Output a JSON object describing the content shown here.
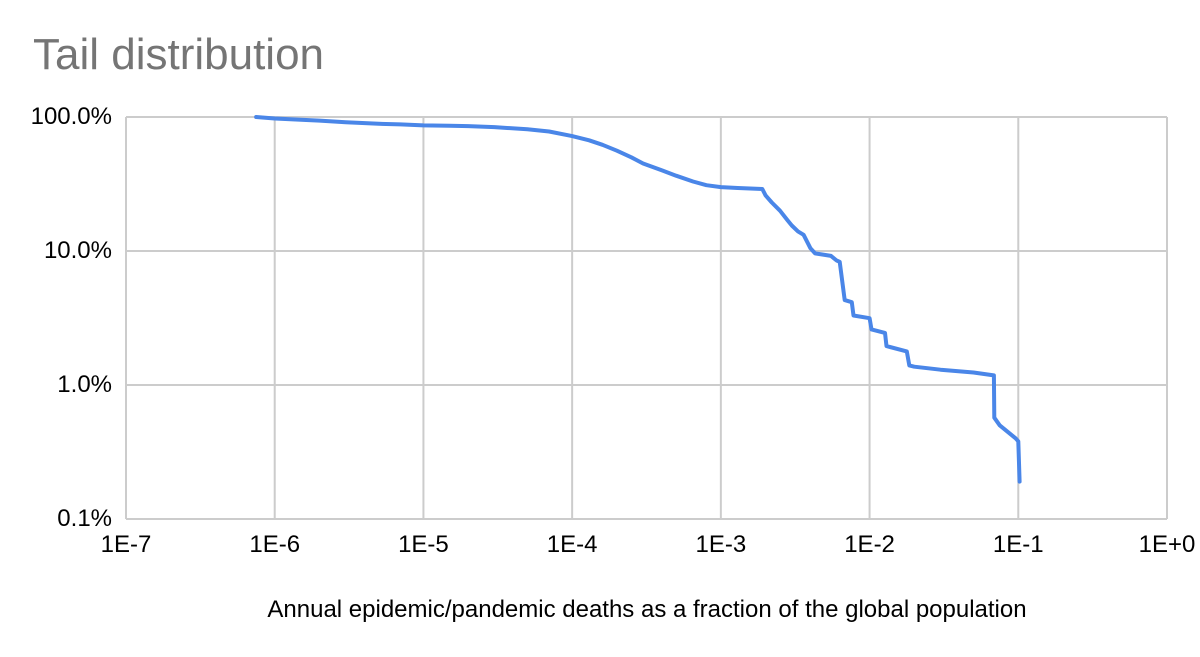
{
  "title": "Tail distribution",
  "colors": {
    "line": "#4a86e8",
    "grid": "#cccccc",
    "title_text": "#757575",
    "axis_text": "#000000",
    "background": "#ffffff"
  },
  "x_axis": {
    "label": "Annual epidemic/pandemic deaths as a fraction of the global population",
    "tick_labels": [
      "1E-7",
      "1E-6",
      "1E-5",
      "1E-4",
      "1E-3",
      "1E-2",
      "1E-1",
      "1E+0"
    ]
  },
  "y_axis": {
    "tick_labels": [
      "100.0%",
      "10.0%",
      "1.0%",
      "0.1%"
    ]
  },
  "chart_data": {
    "type": "line",
    "title": "Tail distribution",
    "xlabel": "Annual epidemic/pandemic deaths as a fraction of the global population",
    "ylabel": "",
    "x_scale": "log",
    "y_scale": "log",
    "x_min_exp": -7,
    "x_max_exp": 0,
    "y_min_log": -1,
    "y_max_log": 2,
    "x_tick_exponents": [
      -7,
      -6,
      -5,
      -4,
      -3,
      -2,
      -1,
      0
    ],
    "y_tick_logs": [
      2,
      1,
      0,
      -1
    ],
    "grid": true,
    "legend": "none",
    "series": [
      {
        "name": "Tail distribution",
        "points_format": "[fraction_of_global_population, ccdf_percent]",
        "points": [
          [
            7.5e-07,
            100
          ],
          [
            1e-06,
            97.5
          ],
          [
            1.5e-06,
            95.5
          ],
          [
            2e-06,
            94
          ],
          [
            3e-06,
            91.5
          ],
          [
            5e-06,
            89
          ],
          [
            7e-06,
            88
          ],
          [
            1e-05,
            86.5
          ],
          [
            1.5e-05,
            86
          ],
          [
            2e-05,
            85.5
          ],
          [
            3e-05,
            84
          ],
          [
            5e-05,
            81
          ],
          [
            7e-05,
            78
          ],
          [
            0.0001,
            72
          ],
          [
            0.00013,
            67
          ],
          [
            0.00016,
            62
          ],
          [
            0.0002,
            56
          ],
          [
            0.00025,
            50
          ],
          [
            0.0003,
            45
          ],
          [
            0.0004,
            40
          ],
          [
            0.0005,
            36.5
          ],
          [
            0.00065,
            33
          ],
          [
            0.0008,
            31
          ],
          [
            0.001,
            30
          ],
          [
            0.0013,
            29.5
          ],
          [
            0.0019,
            29
          ],
          [
            0.002,
            26
          ],
          [
            0.0022,
            23
          ],
          [
            0.0025,
            20
          ],
          [
            0.0028,
            17
          ],
          [
            0.003,
            15.5
          ],
          [
            0.0033,
            14
          ],
          [
            0.0036,
            13.2
          ],
          [
            0.004,
            10.5
          ],
          [
            0.0043,
            9.6
          ],
          [
            0.0055,
            9.2
          ],
          [
            0.006,
            8.5
          ],
          [
            0.0063,
            8.3
          ],
          [
            0.0068,
            4.3
          ],
          [
            0.0076,
            4.15
          ],
          [
            0.0078,
            3.3
          ],
          [
            0.01,
            3.15
          ],
          [
            0.0103,
            2.6
          ],
          [
            0.0127,
            2.45
          ],
          [
            0.013,
            1.95
          ],
          [
            0.0178,
            1.78
          ],
          [
            0.0185,
            1.4
          ],
          [
            0.02,
            1.37
          ],
          [
            0.03,
            1.3
          ],
          [
            0.05,
            1.24
          ],
          [
            0.0685,
            1.18
          ],
          [
            0.069,
            0.57
          ],
          [
            0.075,
            0.5
          ],
          [
            0.096,
            0.4
          ],
          [
            0.1,
            0.38
          ],
          [
            0.102,
            0.19
          ]
        ]
      }
    ]
  }
}
